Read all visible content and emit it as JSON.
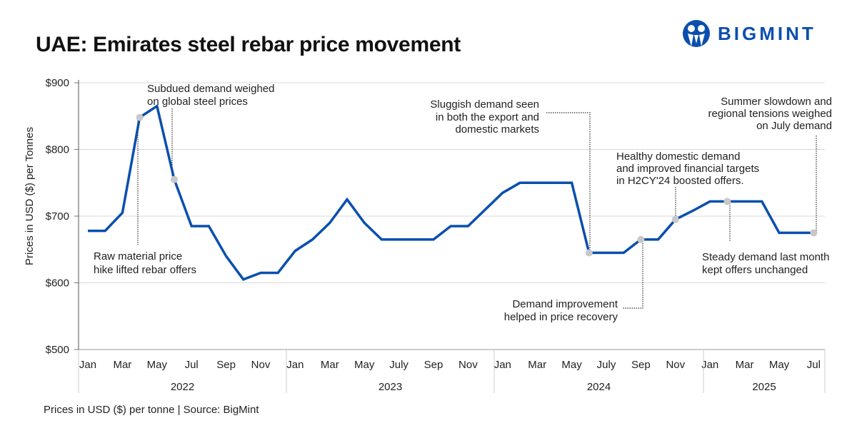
{
  "title": "UAE: Emirates steel rebar price movement",
  "footer": "Prices in USD ($) per tonne  |  Source: BigMint",
  "logo": {
    "text": "BIGMINT",
    "color": "#0a4fae"
  },
  "chart_data": {
    "type": "line",
    "title": "UAE: Emirates steel rebar price movement",
    "ylabel": "Prices in USD ($) per Tonnes",
    "xlabel": "",
    "ylim": [
      500,
      900
    ],
    "yticks": [
      "$500",
      "$600",
      "$700",
      "$800",
      "$900"
    ],
    "ytick_values": [
      500,
      600,
      700,
      800,
      900
    ],
    "grid": true,
    "line_color": "#0a4fae",
    "marker_color": "#c8c8c8",
    "month_ticks": [
      "Jan",
      "Mar",
      "May",
      "Jul",
      "Sep",
      "Nov",
      "Jan",
      "Mar",
      "May",
      "July",
      "Sep",
      "Nov",
      "Jan",
      "Mar",
      "May",
      "July",
      "Sep",
      "Nov",
      "Jan",
      "Mar",
      "May",
      "Jul"
    ],
    "month_tick_index": [
      0,
      2,
      4,
      6,
      8,
      10,
      12,
      14,
      16,
      18,
      20,
      22,
      24,
      26,
      28,
      30,
      32,
      34,
      36,
      38,
      40,
      42
    ],
    "years": [
      "2022",
      "2023",
      "2024",
      "2025"
    ],
    "x": [
      "2022-01",
      "2022-02",
      "2022-03",
      "2022-04",
      "2022-05",
      "2022-06",
      "2022-07",
      "2022-08",
      "2022-09",
      "2022-10",
      "2022-11",
      "2022-12",
      "2023-01",
      "2023-02",
      "2023-03",
      "2023-04",
      "2023-05",
      "2023-06",
      "2023-07",
      "2023-08",
      "2023-09",
      "2023-10",
      "2023-11",
      "2023-12",
      "2024-01",
      "2024-02",
      "2024-03",
      "2024-04",
      "2024-05",
      "2024-06",
      "2024-07",
      "2024-08",
      "2024-09",
      "2024-10",
      "2024-11",
      "2024-12",
      "2025-01",
      "2025-02",
      "2025-03",
      "2025-04",
      "2025-05",
      "2025-06",
      "2025-07"
    ],
    "values": [
      678,
      678,
      705,
      848,
      865,
      755,
      685,
      685,
      640,
      605,
      615,
      615,
      648,
      665,
      690,
      725,
      690,
      665,
      665,
      665,
      665,
      685,
      685,
      710,
      735,
      750,
      750,
      750,
      750,
      645,
      645,
      645,
      665,
      665,
      695,
      708,
      722,
      722,
      722,
      722,
      675,
      675,
      675
    ],
    "markers": [
      "2022-04",
      "2022-06",
      "2024-06",
      "2024-09",
      "2024-11",
      "2025-02",
      "2025-07"
    ],
    "annotations": [
      {
        "month": "2022-06",
        "lines": [
          "Subdued demand weighed",
          "on global steel prices"
        ]
      },
      {
        "month": "2022-04",
        "lines": [
          "Raw material price",
          "hike lifted rebar offers"
        ]
      },
      {
        "month": "2024-06",
        "lines": [
          "Sluggish demand seen",
          "in both the export and",
          "domestic markets"
        ]
      },
      {
        "month": "2024-11",
        "lines": [
          "Healthy domestic demand",
          "and improved financial targets",
          "in H2CY'24 boosted offers."
        ]
      },
      {
        "month": "2025-07",
        "lines": [
          "Summer slowdown and",
          "regional tensions weighed",
          "on July demand"
        ]
      },
      {
        "month": "2025-02",
        "lines": [
          "Steady demand last month",
          "kept offers unchanged"
        ]
      },
      {
        "month": "2024-09",
        "lines": [
          "Demand improvement",
          "helped in price recovery"
        ]
      }
    ]
  }
}
